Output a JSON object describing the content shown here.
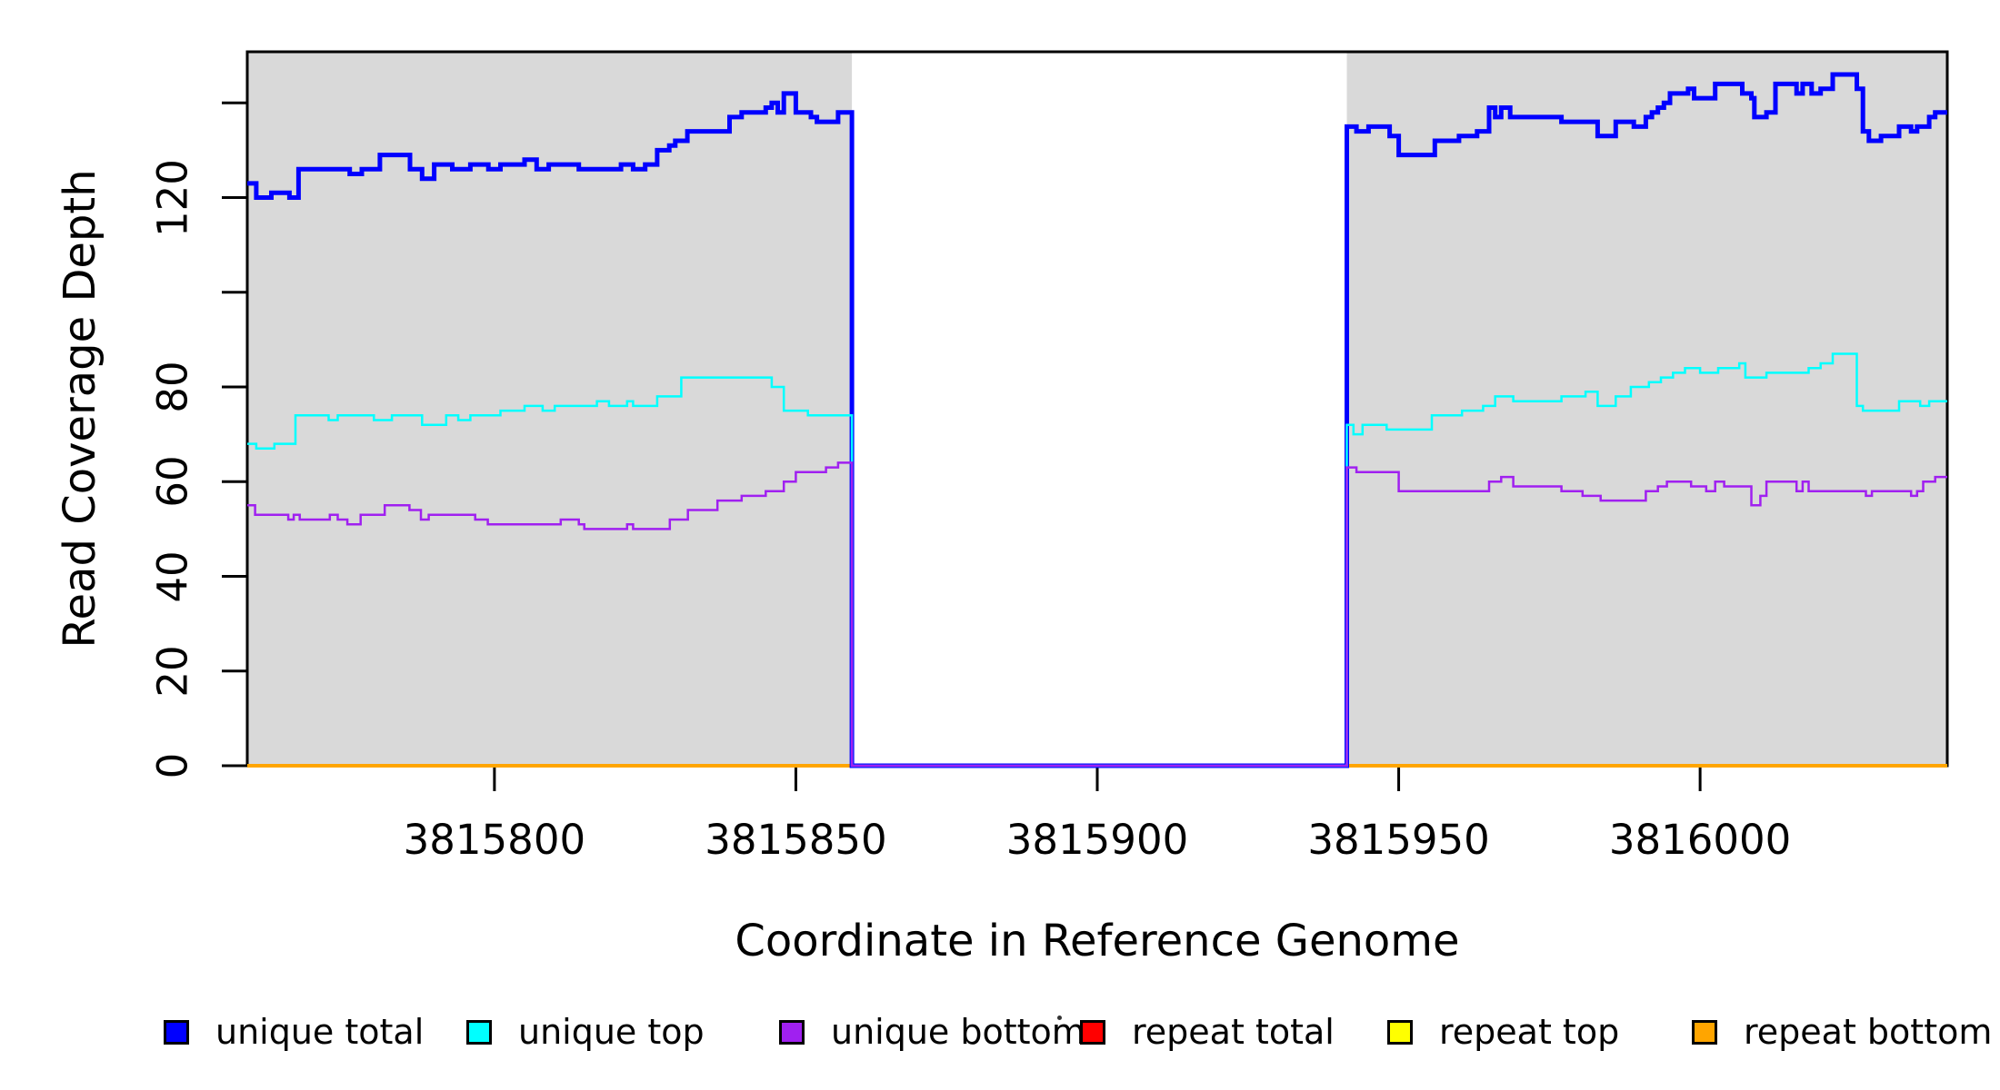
{
  "chart_data": {
    "type": "line",
    "line_style": "step-after",
    "title": "",
    "xlabel": "Coordinate in Reference Genome",
    "ylabel": "Read Coverage Depth",
    "xlim": [
      3815759,
      3816041
    ],
    "ylim": [
      0,
      150.8
    ],
    "grid": "off",
    "plot_background": "#ffffff",
    "box_color": "#000000",
    "shaded_regions": {
      "color": "#d9d9d9",
      "x_ranges": [
        [
          3815759,
          3815859.3
        ],
        [
          3815941.4,
          3816041
        ]
      ]
    },
    "x_ticks": [
      {
        "value": 3815800,
        "label": "3815800"
      },
      {
        "value": 3815850,
        "label": "3815850"
      },
      {
        "value": 3815900,
        "label": "3815900"
      },
      {
        "value": 3815950,
        "label": "3815950"
      },
      {
        "value": 3816000,
        "label": "3816000"
      }
    ],
    "y_ticks": [
      {
        "value": 0,
        "label": "0"
      },
      {
        "value": 20,
        "label": "20"
      },
      {
        "value": 40,
        "label": "40"
      },
      {
        "value": 60,
        "label": "60"
      },
      {
        "value": 80,
        "label": "80"
      },
      {
        "value": 100,
        "label": ""
      },
      {
        "value": 120,
        "label": "120"
      },
      {
        "value": 140,
        "label": ""
      }
    ],
    "draw_order": [
      "repeat total",
      "repeat top",
      "repeat bottom",
      "unique total",
      "unique top",
      "unique bottom"
    ],
    "series": [
      {
        "name": "unique total",
        "color": "#0000ff",
        "stroke_width": 5,
        "points": [
          [
            3815759,
            123
          ],
          [
            3815760.5,
            120
          ],
          [
            3815763,
            121
          ],
          [
            3815766,
            120
          ],
          [
            3815767.5,
            126
          ],
          [
            3815776,
            125
          ],
          [
            3815778,
            126
          ],
          [
            3815781,
            129
          ],
          [
            3815786,
            126
          ],
          [
            3815788,
            124
          ],
          [
            3815790,
            127
          ],
          [
            3815793,
            126
          ],
          [
            3815796,
            127
          ],
          [
            3815799,
            126
          ],
          [
            3815801,
            127
          ],
          [
            3815805,
            128
          ],
          [
            3815807,
            126
          ],
          [
            3815809,
            127
          ],
          [
            3815814,
            126
          ],
          [
            3815821,
            127
          ],
          [
            3815823,
            126
          ],
          [
            3815825,
            127
          ],
          [
            3815827,
            130
          ],
          [
            3815829,
            131
          ],
          [
            3815830,
            132
          ],
          [
            3815832,
            134
          ],
          [
            3815839,
            137
          ],
          [
            3815841,
            138
          ],
          [
            3815845,
            139
          ],
          [
            3815846,
            140
          ],
          [
            3815847,
            138
          ],
          [
            3815848,
            142
          ],
          [
            3815850,
            138
          ],
          [
            3815852.5,
            137
          ],
          [
            3815853.5,
            136
          ],
          [
            3815857,
            138
          ],
          [
            3815859.3,
            0
          ],
          [
            3815941.4,
            135
          ],
          [
            3815943,
            134
          ],
          [
            3815945,
            135
          ],
          [
            3815948.5,
            133
          ],
          [
            3815950,
            129
          ],
          [
            3815956,
            132
          ],
          [
            3815960,
            133
          ],
          [
            3815963,
            134
          ],
          [
            3815965,
            139
          ],
          [
            3815966,
            137
          ],
          [
            3815967,
            139
          ],
          [
            3815968.5,
            137
          ],
          [
            3815977,
            136
          ],
          [
            3815983,
            133
          ],
          [
            3815986,
            136
          ],
          [
            3815989,
            135
          ],
          [
            3815991,
            137
          ],
          [
            3815992,
            138
          ],
          [
            3815993,
            139
          ],
          [
            3815994,
            140
          ],
          [
            3815995,
            142
          ],
          [
            3815998,
            143
          ],
          [
            3815999,
            141
          ],
          [
            3816002.5,
            144
          ],
          [
            3816007,
            142
          ],
          [
            3816008.5,
            141
          ],
          [
            3816009,
            137
          ],
          [
            3816011,
            138
          ],
          [
            3816012.5,
            144
          ],
          [
            3816016,
            142
          ],
          [
            3816017,
            144
          ],
          [
            3816018.5,
            142
          ],
          [
            3816020,
            143
          ],
          [
            3816022,
            146
          ],
          [
            3816026,
            143
          ],
          [
            3816027,
            134
          ],
          [
            3816028,
            132
          ],
          [
            3816030,
            133
          ],
          [
            3816033,
            135
          ],
          [
            3816035,
            134
          ],
          [
            3816036,
            135
          ],
          [
            3816038,
            137
          ],
          [
            3816039,
            138
          ]
        ]
      },
      {
        "name": "unique top",
        "color": "#00ffff",
        "stroke_width": 2.5,
        "points": [
          [
            3815759,
            68
          ],
          [
            3815760.5,
            67
          ],
          [
            3815763.5,
            68
          ],
          [
            3815767,
            74
          ],
          [
            3815772.5,
            73
          ],
          [
            3815774,
            74
          ],
          [
            3815780,
            73
          ],
          [
            3815783,
            74
          ],
          [
            3815788,
            72
          ],
          [
            3815792,
            74
          ],
          [
            3815794,
            73
          ],
          [
            3815796,
            74
          ],
          [
            3815801,
            75
          ],
          [
            3815805,
            76
          ],
          [
            3815808,
            75
          ],
          [
            3815810,
            76
          ],
          [
            3815817,
            77
          ],
          [
            3815819,
            76
          ],
          [
            3815822,
            77
          ],
          [
            3815823,
            76
          ],
          [
            3815827,
            78
          ],
          [
            3815831,
            82
          ],
          [
            3815846,
            80
          ],
          [
            3815848,
            75
          ],
          [
            3815852,
            74
          ],
          [
            3815859.3,
            0
          ],
          [
            3815941.4,
            72
          ],
          [
            3815942.5,
            70
          ],
          [
            3815944,
            72
          ],
          [
            3815948,
            71
          ],
          [
            3815955.5,
            74
          ],
          [
            3815960.5,
            75
          ],
          [
            3815964,
            76
          ],
          [
            3815966,
            78
          ],
          [
            3815969,
            77
          ],
          [
            3815977,
            78
          ],
          [
            3815981,
            79
          ],
          [
            3815983,
            76
          ],
          [
            3815986,
            78
          ],
          [
            3815988.5,
            80
          ],
          [
            3815991.5,
            81
          ],
          [
            3815993.5,
            82
          ],
          [
            3815995.5,
            83
          ],
          [
            3815997.5,
            84
          ],
          [
            3816000,
            83
          ],
          [
            3816003,
            84
          ],
          [
            3816006.5,
            85
          ],
          [
            3816007.5,
            82
          ],
          [
            3816011,
            83
          ],
          [
            3816018,
            84
          ],
          [
            3816020,
            85
          ],
          [
            3816022,
            87
          ],
          [
            3816026,
            76
          ],
          [
            3816027,
            75
          ],
          [
            3816033,
            77
          ],
          [
            3816036.5,
            76
          ],
          [
            3816038,
            77
          ]
        ]
      },
      {
        "name": "unique bottom",
        "color": "#a020f0",
        "stroke_width": 2.5,
        "points": [
          [
            3815759,
            55
          ],
          [
            3815760.3,
            53
          ],
          [
            3815765.8,
            52
          ],
          [
            3815766.7,
            53
          ],
          [
            3815767.7,
            52
          ],
          [
            3815772.7,
            53
          ],
          [
            3815774,
            52
          ],
          [
            3815775.6,
            51
          ],
          [
            3815777.8,
            53
          ],
          [
            3815781.8,
            55
          ],
          [
            3815785.9,
            54
          ],
          [
            3815787.8,
            52
          ],
          [
            3815789.1,
            53
          ],
          [
            3815796.8,
            52
          ],
          [
            3815798.9,
            51
          ],
          [
            3815811,
            52
          ],
          [
            3815814,
            51
          ],
          [
            3815814.9,
            50
          ],
          [
            3815822,
            51
          ],
          [
            3815823,
            50
          ],
          [
            3815829.1,
            52
          ],
          [
            3815832.1,
            54
          ],
          [
            3815837,
            56
          ],
          [
            3815841,
            57
          ],
          [
            3815845,
            58
          ],
          [
            3815848,
            60
          ],
          [
            3815850,
            62
          ],
          [
            3815855,
            63
          ],
          [
            3815857,
            64
          ],
          [
            3815859.3,
            0
          ],
          [
            3815941.4,
            63
          ],
          [
            3815943,
            62
          ],
          [
            3815950,
            58
          ],
          [
            3815965,
            60
          ],
          [
            3815967,
            61
          ],
          [
            3815969,
            59
          ],
          [
            3815977,
            58
          ],
          [
            3815980.5,
            57
          ],
          [
            3815983.5,
            56
          ],
          [
            3815991,
            58
          ],
          [
            3815993,
            59
          ],
          [
            3815994.5,
            60
          ],
          [
            3815998.5,
            59
          ],
          [
            3816001,
            58
          ],
          [
            3816002.5,
            60
          ],
          [
            3816004,
            59
          ],
          [
            3816008.5,
            55
          ],
          [
            3816010,
            57
          ],
          [
            3816011,
            60
          ],
          [
            3816016,
            58
          ],
          [
            3816017,
            60
          ],
          [
            3816018,
            58
          ],
          [
            3816027.5,
            57
          ],
          [
            3816028.5,
            58
          ],
          [
            3816035,
            57
          ],
          [
            3816036,
            58
          ],
          [
            3816037,
            60
          ],
          [
            3816039,
            61
          ]
        ]
      },
      {
        "name": "repeat total",
        "color": "#ff0000",
        "stroke_width": 2.5,
        "points": [
          [
            3815759,
            0
          ]
        ]
      },
      {
        "name": "repeat top",
        "color": "#ffff00",
        "stroke_width": 2.5,
        "points": [
          [
            3815759,
            0
          ]
        ]
      },
      {
        "name": "repeat bottom",
        "color": "#ffa500",
        "stroke_width": 4,
        "points": [
          [
            3815759,
            0
          ]
        ]
      }
    ],
    "legend": {
      "position": "bottom",
      "entries": [
        {
          "label": "unique total",
          "color": "#0000ff"
        },
        {
          "label": "unique top",
          "color": "#00ffff"
        },
        {
          "label": "unique bottom",
          "color": "#a020f0"
        },
        {
          "label": "repeat total",
          "color": "#ff0000"
        },
        {
          "label": "repeat top",
          "color": "#ffff00"
        },
        {
          "label": "repeat bottom",
          "color": "#ffa500"
        }
      ]
    }
  }
}
